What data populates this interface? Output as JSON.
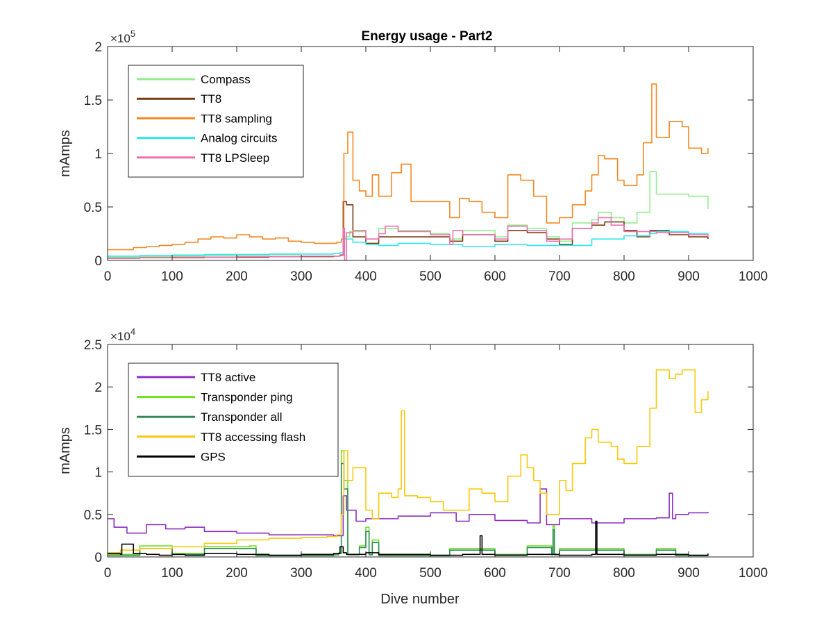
{
  "figure_title": "Energy usage - Part2",
  "colors": {
    "Compass": "#90ee90",
    "TT8": "#7b3a10",
    "TT8 sampling": "#f5871f",
    "Analog circuits": "#2ee8f0",
    "TT8 LPSleep": "#ee6fb0",
    "TT8 active": "#8b2fc0",
    "Transponder ping": "#6fe01f",
    "Transponder all": "#2e8b57",
    "TT8 accessing flash": "#f8c80a",
    "GPS": "#000000"
  },
  "chart_data": [
    {
      "type": "line",
      "title": "Energy usage - Part2",
      "xlabel": "",
      "ylabel": "mAmps",
      "xlim": [
        0,
        1000
      ],
      "ylim": [
        0,
        200000
      ],
      "y_exponent_label": "× 10^5",
      "y_exponent": {
        "base": "×10",
        "power": "5"
      },
      "xticks": [
        "0",
        "100",
        "200",
        "300",
        "400",
        "500",
        "600",
        "700",
        "800",
        "900",
        "1000"
      ],
      "yticks": [
        "0",
        "0.5",
        "1",
        "1.5",
        "2"
      ],
      "legend_position": "top-left",
      "grid": false,
      "series": [
        {
          "name": "Compass",
          "x": [
            0,
            50,
            100,
            150,
            200,
            250,
            300,
            350,
            360,
            365,
            375,
            400,
            420,
            450,
            500,
            530,
            550,
            600,
            620,
            650,
            680,
            700,
            720,
            750,
            760,
            780,
            800,
            820,
            840,
            850,
            880,
            900,
            930
          ],
          "values": [
            3000,
            3500,
            4000,
            4500,
            5000,
            5500,
            6000,
            6500,
            7000,
            22000,
            27000,
            20000,
            30000,
            28000,
            25000,
            20000,
            28000,
            22000,
            33000,
            30000,
            22000,
            18000,
            35000,
            38000,
            45000,
            40000,
            35000,
            45000,
            83000,
            62000,
            62000,
            60000,
            48000
          ]
        },
        {
          "name": "TT8",
          "x": [
            0,
            50,
            100,
            150,
            200,
            250,
            300,
            350,
            360,
            365,
            370,
            380,
            400,
            420,
            450,
            500,
            530,
            550,
            600,
            620,
            650,
            680,
            700,
            720,
            750,
            770,
            800,
            820,
            840,
            870,
            900,
            930
          ],
          "values": [
            2000,
            2500,
            2500,
            3000,
            3000,
            3500,
            3500,
            4000,
            5000,
            55000,
            52000,
            22000,
            16000,
            22000,
            22000,
            22000,
            18000,
            24000,
            18000,
            28000,
            26000,
            20000,
            15000,
            30000,
            33000,
            36000,
            28000,
            22000,
            28000,
            24000,
            22000,
            20000
          ]
        },
        {
          "name": "TT8 sampling",
          "x": [
            0,
            20,
            40,
            60,
            80,
            100,
            120,
            140,
            160,
            180,
            200,
            220,
            240,
            260,
            280,
            300,
            320,
            340,
            355,
            362,
            366,
            372,
            380,
            390,
            400,
            410,
            420,
            440,
            455,
            470,
            490,
            510,
            530,
            545,
            560,
            580,
            600,
            620,
            640,
            660,
            680,
            700,
            720,
            740,
            750,
            760,
            770,
            790,
            800,
            820,
            830,
            843,
            850,
            870,
            890,
            900,
            920,
            930
          ],
          "values": [
            10000,
            10000,
            12000,
            13000,
            14000,
            15000,
            17000,
            20000,
            22000,
            21000,
            24000,
            22000,
            20000,
            21000,
            18000,
            17000,
            16000,
            16000,
            17000,
            20000,
            100000,
            120000,
            75000,
            65000,
            60000,
            80000,
            60000,
            82000,
            90000,
            55000,
            55000,
            55000,
            40000,
            58000,
            55000,
            45000,
            40000,
            80000,
            75000,
            60000,
            35000,
            40000,
            52000,
            65000,
            80000,
            98000,
            95000,
            75000,
            70000,
            80000,
            110000,
            165000,
            115000,
            130000,
            125000,
            105000,
            100000,
            105000
          ]
        },
        {
          "name": "Analog circuits",
          "x": [
            0,
            50,
            100,
            150,
            200,
            250,
            300,
            350,
            360,
            365,
            380,
            400,
            420,
            450,
            500,
            550,
            600,
            650,
            700,
            750,
            800,
            840,
            850,
            900,
            930
          ],
          "values": [
            4000,
            4500,
            5000,
            5500,
            5500,
            6000,
            6000,
            6500,
            7000,
            20000,
            17000,
            15000,
            14000,
            16000,
            15000,
            13000,
            15000,
            14000,
            14000,
            20000,
            23000,
            25000,
            27000,
            25000,
            23000
          ]
        },
        {
          "name": "TT8 LPSleep",
          "x": [
            0,
            50,
            100,
            150,
            200,
            250,
            300,
            350,
            360,
            365,
            367,
            370,
            380,
            400,
            420,
            430,
            450,
            500,
            530,
            535,
            550,
            600,
            620,
            650,
            680,
            700,
            720,
            750,
            760,
            780,
            800,
            840,
            850,
            900,
            930
          ],
          "values": [
            2000,
            2500,
            3000,
            3000,
            3500,
            3500,
            4000,
            4000,
            4500,
            30000,
            0,
            26000,
            28000,
            20000,
            25000,
            32000,
            27000,
            24000,
            15000,
            28000,
            24000,
            20000,
            32000,
            28000,
            18000,
            20000,
            30000,
            35000,
            40000,
            33000,
            27000,
            27000,
            26000,
            24000,
            22000
          ]
        }
      ]
    },
    {
      "type": "line",
      "title": "",
      "xlabel": "Dive number",
      "ylabel": "mAmps",
      "xlim": [
        0,
        1000
      ],
      "ylim": [
        0,
        25000
      ],
      "y_exponent_label": "× 10^4",
      "y_exponent": {
        "base": "×10",
        "power": "4"
      },
      "xticks": [
        "0",
        "100",
        "200",
        "300",
        "400",
        "500",
        "600",
        "700",
        "800",
        "900",
        "1000"
      ],
      "yticks": [
        "0",
        "0.5",
        "1",
        "1.5",
        "2",
        "2.5"
      ],
      "legend_position": "top-left",
      "grid": false,
      "series": [
        {
          "name": "TT8 active",
          "x": [
            0,
            10,
            30,
            60,
            90,
            120,
            150,
            200,
            250,
            300,
            350,
            365,
            370,
            385,
            400,
            450,
            500,
            540,
            560,
            600,
            650,
            670,
            680,
            700,
            750,
            800,
            850,
            870,
            875,
            880,
            900,
            930
          ],
          "values": [
            4500,
            3500,
            2800,
            3800,
            3300,
            3500,
            3000,
            2800,
            2600,
            2600,
            2500,
            7200,
            5500,
            4200,
            4500,
            4800,
            5200,
            4200,
            5000,
            4300,
            4000,
            8000,
            3800,
            4500,
            4000,
            4500,
            4600,
            7500,
            4500,
            5000,
            5200,
            5300
          ]
        },
        {
          "name": "Transponder ping",
          "x": [
            0,
            50,
            100,
            150,
            200,
            220,
            230,
            300,
            350,
            358,
            362,
            366,
            372,
            390,
            400,
            405,
            410,
            420,
            500,
            530,
            550,
            600,
            650,
            688,
            690,
            692,
            700,
            800,
            850,
            870,
            880,
            930
          ],
          "values": [
            300,
            1300,
            400,
            1200,
            1200,
            1300,
            200,
            200,
            300,
            500,
            12500,
            9000,
            300,
            1300,
            3500,
            300,
            2000,
            200,
            200,
            1000,
            1000,
            300,
            1300,
            300,
            3700,
            300,
            1000,
            300,
            1000,
            1000,
            200,
            300
          ]
        },
        {
          "name": "Transponder all",
          "x": [
            0,
            50,
            100,
            150,
            200,
            220,
            230,
            300,
            350,
            358,
            362,
            366,
            372,
            390,
            400,
            405,
            410,
            420,
            500,
            530,
            550,
            600,
            650,
            688,
            690,
            692,
            700,
            800,
            850,
            870,
            880,
            930
          ],
          "values": [
            200,
            1000,
            300,
            1000,
            1000,
            1000,
            150,
            150,
            250,
            400,
            11000,
            8000,
            250,
            1100,
            3000,
            250,
            1700,
            150,
            150,
            800,
            800,
            250,
            1100,
            250,
            3200,
            250,
            800,
            250,
            800,
            800,
            150,
            250
          ]
        },
        {
          "name": "TT8 accessing flash",
          "x": [
            0,
            20,
            50,
            100,
            150,
            200,
            250,
            300,
            340,
            355,
            362,
            366,
            372,
            380,
            400,
            410,
            420,
            440,
            450,
            455,
            460,
            480,
            500,
            520,
            540,
            560,
            580,
            600,
            620,
            640,
            650,
            660,
            670,
            680,
            700,
            710,
            720,
            740,
            750,
            760,
            780,
            790,
            800,
            820,
            840,
            850,
            870,
            880,
            890,
            900,
            910,
            920,
            930
          ],
          "values": [
            500,
            800,
            1000,
            1200,
            1600,
            2000,
            2200,
            2300,
            2400,
            2600,
            5000,
            12500,
            9000,
            10500,
            5500,
            4500,
            7500,
            7000,
            8000,
            17200,
            7200,
            7000,
            6500,
            5500,
            5500,
            8000,
            7500,
            6500,
            9500,
            12000,
            10500,
            9000,
            7500,
            5000,
            9000,
            7800,
            11000,
            14000,
            15000,
            13500,
            13000,
            11500,
            11000,
            13000,
            17500,
            22000,
            21000,
            21500,
            22000,
            22000,
            17000,
            18500,
            19500
          ]
        },
        {
          "name": "GPS",
          "x": [
            0,
            20,
            22,
            40,
            60,
            80,
            100,
            120,
            150,
            200,
            250,
            300,
            350,
            360,
            365,
            370,
            380,
            400,
            420,
            450,
            500,
            550,
            575,
            577,
            580,
            600,
            650,
            700,
            750,
            756,
            758,
            760,
            800,
            850,
            900,
            930
          ],
          "values": [
            400,
            300,
            1500,
            400,
            300,
            200,
            300,
            200,
            400,
            300,
            200,
            300,
            400,
            1200,
            500,
            300,
            300,
            500,
            300,
            300,
            200,
            300,
            300,
            2500,
            300,
            200,
            300,
            200,
            300,
            4200,
            300,
            300,
            200,
            300,
            200,
            400
          ]
        }
      ]
    }
  ]
}
